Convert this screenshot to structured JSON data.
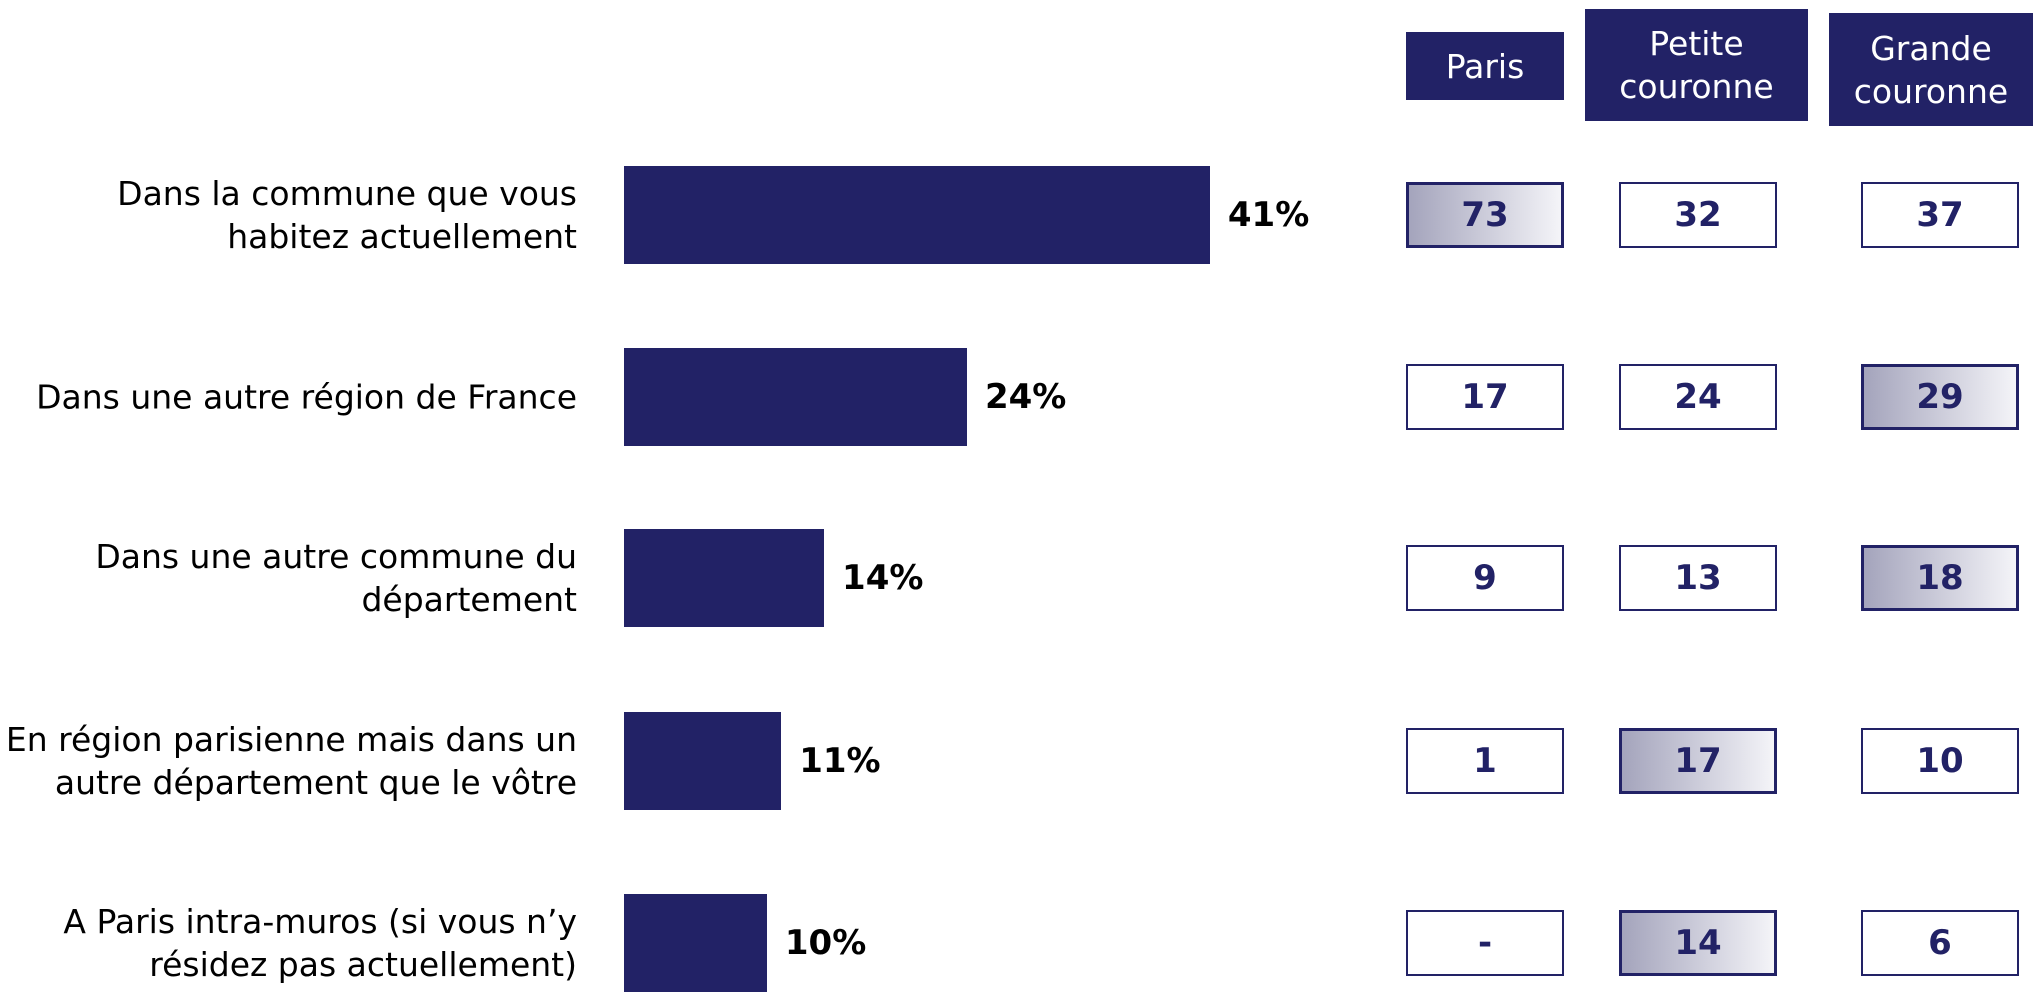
{
  "chart_data": {
    "type": "bar",
    "orientation": "horizontal",
    "color": "#222266",
    "categories": [
      "Dans la commune que vous habitez actuellement",
      "Dans une autre région de France",
      "Dans une autre commune du département",
      "En région parisienne mais dans un autre département que le vôtre",
      "A Paris intra-muros (si vous n’y résidez pas actuellement)"
    ],
    "values": [
      41,
      24,
      14,
      11,
      10
    ],
    "value_labels": [
      "41%",
      "24%",
      "14%",
      "11%",
      "10%"
    ]
  },
  "table": {
    "columns": [
      "Paris",
      "Petite couronne",
      "Grande couronne"
    ],
    "rows": [
      [
        "73",
        "32",
        "37"
      ],
      [
        "17",
        "24",
        "29"
      ],
      [
        "9",
        "13",
        "18"
      ],
      [
        "1",
        "17",
        "10"
      ],
      [
        "-",
        "14",
        "6"
      ]
    ],
    "highlighted": [
      [
        true,
        false,
        false
      ],
      [
        false,
        false,
        true
      ],
      [
        false,
        false,
        true
      ],
      [
        false,
        true,
        false
      ],
      [
        false,
        true,
        false
      ]
    ]
  }
}
